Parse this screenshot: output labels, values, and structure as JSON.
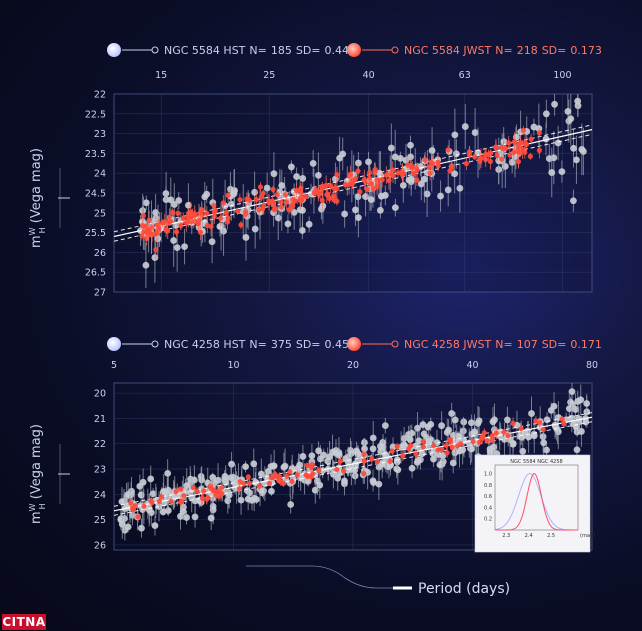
{
  "chart_data": [
    {
      "type": "scatter",
      "legend": [
        {
          "name": "NGC 5584 HST",
          "n_label": "N=",
          "n": "185",
          "sd_label": "SD=",
          "sd": "0.449",
          "color": "#d8dde8"
        },
        {
          "name": "NGC 5584 JWST",
          "n_label": "N=",
          "n": "218",
          "sd_label": "SD=",
          "sd": "0.173",
          "color": "#ff5a44"
        }
      ],
      "x_scale": "log",
      "xlim": [
        12,
        115
      ],
      "x_ticks": [
        15,
        25,
        40,
        63,
        100
      ],
      "ylim": [
        27,
        22
      ],
      "y_ticks": [
        22,
        22.5,
        23,
        23.5,
        24,
        24.5,
        25,
        25.5,
        26,
        26.5,
        27
      ],
      "y_tick_labels": [
        "22",
        "22.5",
        "23",
        "23.5",
        "24",
        "24.5",
        "25",
        "25.5",
        "26",
        "26.5",
        "27"
      ],
      "ylabel_main": "m",
      "ylabel_sup": "W",
      "ylabel_sub": "H",
      "ylabel_rest": " (Vega mag)",
      "fit": {
        "x0": 12.5,
        "y0": 25.55,
        "x1": 115,
        "y1": 22.9,
        "band": 0.12
      },
      "hst": {
        "n": 185,
        "seed": 7,
        "scatter": 0.45,
        "xmin": 13.5,
        "xmax": 112
      },
      "jwst": {
        "n": 218,
        "seed": 13,
        "scatter": 0.17,
        "xmin": 13.5,
        "xmax": 90
      }
    },
    {
      "type": "scatter",
      "legend": [
        {
          "name": "NGC 4258 HST",
          "n_label": "N=",
          "n": "375",
          "sd_label": "SD=",
          "sd": "0.457",
          "color": "#d8dde8"
        },
        {
          "name": "NGC 4258 JWST",
          "n_label": "N=",
          "n": "107",
          "sd_label": "SD=",
          "sd": "0.171",
          "color": "#ff5a44"
        }
      ],
      "x_scale": "log",
      "xlim": [
        5,
        80
      ],
      "x_ticks": [
        5,
        10,
        20,
        40,
        80
      ],
      "ylim": [
        26.2,
        19.6
      ],
      "y_ticks": [
        20,
        21,
        22,
        23,
        24,
        25,
        26
      ],
      "y_tick_labels": [
        "20",
        "21",
        "22",
        "23",
        "24",
        "25",
        "26"
      ],
      "ylabel_main": "m",
      "ylabel_sup": "W",
      "ylabel_sub": "H",
      "ylabel_rest": " (Vega mag)",
      "fit": {
        "x0": 5,
        "y0": 24.65,
        "x1": 80,
        "y1": 20.95,
        "band": 0.18
      },
      "hst": {
        "n": 375,
        "seed": 21,
        "scatter": 0.45,
        "xmin": 5.2,
        "xmax": 78
      },
      "jwst": {
        "n": 107,
        "seed": 34,
        "scatter": 0.17,
        "xmin": 5.5,
        "xmax": 70
      },
      "inset": {
        "title": "NGC 5584 NGC 4258",
        "x_ticks": [
          2.3,
          2.4,
          2.5
        ],
        "x_unit": "(mag)",
        "xlim": [
          2.25,
          2.62
        ],
        "y_ticks": [
          0.2,
          0.4,
          0.6,
          0.8,
          1.0
        ],
        "y_tick_labels": [
          "0.2",
          "0.4",
          "0.6",
          "0.8",
          "1.0"
        ],
        "ylim": [
          0,
          1.15
        ],
        "curves": [
          {
            "mu": 2.405,
            "sigma": 0.05,
            "color": "#aab4ff"
          },
          {
            "mu": 2.425,
            "sigma": 0.032,
            "color": "#ff4d6a"
          }
        ]
      }
    }
  ],
  "footer": {
    "label": "Period (days)"
  },
  "watermark": "CITNA"
}
